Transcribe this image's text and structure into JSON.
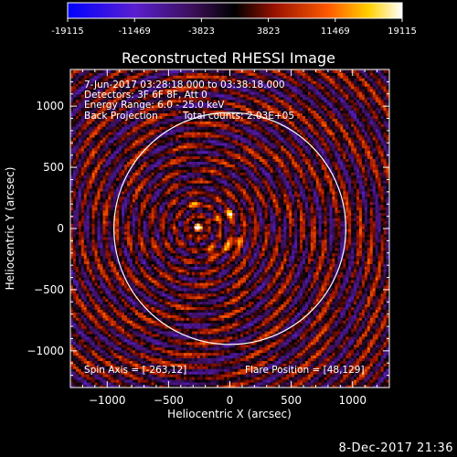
{
  "window_footer": {
    "timestamp": "8-Dec-2017 21:36"
  },
  "colors": {
    "background": "#000000",
    "text": "#ffffff",
    "solar_limb": "#ffffff"
  },
  "colorbar": {
    "tick_labels": [
      "-19115",
      "-11469",
      "-3823",
      "3823",
      "11469",
      "19115"
    ],
    "values": [
      -19115,
      -11469,
      -3823,
      3823,
      11469,
      19115
    ],
    "range": [
      -19115,
      19115
    ],
    "colormap": "blue-purple-black-red-yellow-white"
  },
  "chart_data": {
    "type": "heatmap",
    "title": "Reconstructed RHESSI Image",
    "xlabel": "Heliocentric X (arcsec)",
    "ylabel": "Heliocentric Y (arcsec)",
    "xlim": [
      -1300,
      1300
    ],
    "ylim": [
      -1300,
      1300
    ],
    "xticks": [
      -1000,
      -500,
      0,
      500,
      1000
    ],
    "yticks": [
      -1000,
      -500,
      0,
      500,
      1000
    ],
    "xtick_labels": [
      "−1000",
      "−500",
      "0",
      "500",
      "1000"
    ],
    "ytick_labels": [
      "−1000",
      "−500",
      "0",
      "500",
      "1000"
    ],
    "annotations": {
      "time_range": "7-Jun-2017 03:28:18.000 to 03:38:18.000",
      "detectors": "Detectors: 3F 6F 8F, Att 0",
      "energy_range": "Energy Range: 6.0 - 25.0 keV",
      "method": "Back Projection",
      "total_counts": "Total counts: 2.03E+05",
      "spin_axis": "Spin Axis = [-263,12]",
      "flare_position": "Flare Position = [48,129]"
    },
    "solar_disk_radius_arcsec": 945,
    "spin_axis": [
      -263,
      12
    ],
    "flare_position": [
      48,
      129
    ],
    "sources": [
      {
        "x": -255,
        "y": 10,
        "intensity": 19115
      },
      {
        "x": 65,
        "y": -95,
        "intensity": 16500
      },
      {
        "x": -5,
        "y": 125,
        "intensity": 14000
      },
      {
        "x": -140,
        "y": -185,
        "intensity": 11000
      },
      {
        "x": -25,
        "y": -150,
        "intensity": 10000
      },
      {
        "x": -285,
        "y": 195,
        "intensity": 9000
      },
      {
        "x": 155,
        "y": 140,
        "intensity": 7500
      },
      {
        "x": -120,
        "y": 75,
        "intensity": 7000
      }
    ],
    "ring_pattern": {
      "center": [
        -263,
        12
      ],
      "period_arcsec": 95
    }
  }
}
